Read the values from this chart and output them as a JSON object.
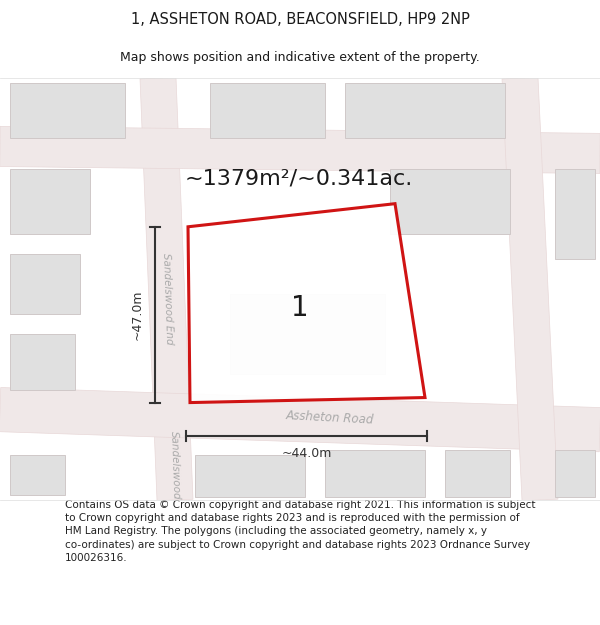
{
  "title_line1": "1, ASSHETON ROAD, BEACONSFIELD, HP9 2NP",
  "title_line2": "Map shows position and indicative extent of the property.",
  "area_text": "~1379m²/~0.341ac.",
  "plot_label": "1",
  "dim_vertical": "~47.0m",
  "dim_horizontal": "~44.0m",
  "road_label": "Assheton Road",
  "street_label1": "Sandelswood End",
  "street_label2": "Sandelswood",
  "footer_text": "Contains OS data © Crown copyright and database right 2021. This information is subject\nto Crown copyright and database rights 2023 and is reproduced with the permission of\nHM Land Registry. The polygons (including the associated geometry, namely x, y\nco-ordinates) are subject to Crown copyright and database rights 2023 Ordnance Survey\n100026316.",
  "bg_color": "#ffffff",
  "map_bg": "#f9f5f5",
  "plot_fill": "#ffffff",
  "plot_border_color": "#cc0000",
  "road_fill": "#f0e8e8",
  "road_edge": "#e8d8d8",
  "building_fill": "#e0e0e0",
  "building_edge": "#d0c8c8",
  "inner_building_fill": "#e8e8e8",
  "inner_building_edge": "#d8d8d8",
  "dim_color": "#333333",
  "text_color": "#1a1a1a",
  "road_text_color": "#aaaaaa",
  "footer_text_color": "#222222"
}
